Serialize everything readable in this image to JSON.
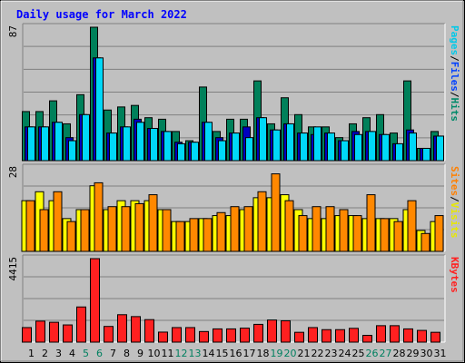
{
  "chart_data": [
    {
      "type": "bar",
      "title": "Daily usage for March 2022",
      "categories": [
        "1",
        "2",
        "3",
        "4",
        "5",
        "6",
        "7",
        "8",
        "9",
        "10",
        "11",
        "12",
        "13",
        "14",
        "15",
        "16",
        "17",
        "18",
        "19",
        "20",
        "21",
        "22",
        "23",
        "24",
        "25",
        "26",
        "27",
        "28",
        "29",
        "30",
        "31"
      ],
      "weekend_days": [
        "5",
        "6",
        "12",
        "13",
        "19",
        "20",
        "26",
        "27"
      ],
      "ymax_label": "87",
      "ylim": [
        0,
        87
      ],
      "ylabel_parts": [
        {
          "text": "Pages",
          "color": "#00c8e8"
        },
        {
          "text": "/",
          "color": "#000000"
        },
        {
          "text": "Files",
          "color": "#0040ff"
        },
        {
          "text": "/",
          "color": "#000000"
        },
        {
          "text": "Hits",
          "color": "#008a6a"
        }
      ],
      "series": [
        {
          "name": "Hits",
          "color": "#00805a",
          "values": [
            32,
            32,
            39,
            24,
            43,
            87,
            33,
            35,
            36,
            28,
            27,
            19,
            13,
            48,
            19,
            27,
            27,
            52,
            24,
            41,
            30,
            22,
            22,
            15,
            24,
            28,
            30,
            18,
            52,
            8,
            19
          ]
        },
        {
          "name": "Files",
          "color": "#0000c0",
          "values": [
            22,
            22,
            25,
            15,
            30,
            67,
            18,
            22,
            27,
            21,
            19,
            12,
            12,
            25,
            15,
            18,
            22,
            28,
            20,
            24,
            18,
            17,
            18,
            13,
            19,
            19,
            17,
            11,
            20,
            8,
            16
          ]
        },
        {
          "name": "Pages",
          "color": "#00d8f8",
          "values": [
            22,
            22,
            25,
            13,
            30,
            67,
            18,
            22,
            25,
            21,
            19,
            11,
            12,
            25,
            13,
            18,
            15,
            28,
            20,
            24,
            18,
            22,
            18,
            13,
            17,
            19,
            17,
            11,
            18,
            8,
            16
          ]
        }
      ]
    },
    {
      "type": "bar",
      "ymax_label": "28",
      "ylim": [
        0,
        28
      ],
      "ylabel_parts": [
        {
          "text": "Sites",
          "color": "#ff8000"
        },
        {
          "text": "/",
          "color": "#000000"
        },
        {
          "text": "Visits",
          "color": "#e8e800"
        }
      ],
      "series": [
        {
          "name": "Visits",
          "color": "#ffff00",
          "values": [
            17,
            20,
            17,
            11,
            14,
            22,
            14,
            17,
            17,
            17,
            14,
            10,
            10,
            11,
            12,
            12,
            14,
            18,
            18,
            19,
            14,
            11,
            11,
            12,
            12,
            11,
            11,
            11,
            14,
            7,
            10
          ]
        },
        {
          "name": "Sites",
          "color": "#ff8800",
          "values": [
            17,
            14,
            20,
            10,
            14,
            23,
            15,
            15,
            16,
            19,
            14,
            10,
            11,
            11,
            13,
            15,
            15,
            20,
            26,
            17,
            12,
            15,
            15,
            14,
            12,
            19,
            11,
            10,
            17,
            6,
            12
          ]
        }
      ]
    },
    {
      "type": "bar",
      "ymax_label": "4415",
      "ylim": [
        0,
        4415
      ],
      "ylabel_parts": [
        {
          "text": "KBytes",
          "color": "#ff2020"
        }
      ],
      "series": [
        {
          "name": "KBytes",
          "color": "#ff2020",
          "values": [
            770,
            1110,
            1050,
            910,
            1860,
            4415,
            830,
            1450,
            1350,
            1190,
            530,
            770,
            770,
            560,
            700,
            700,
            740,
            940,
            1170,
            1130,
            520,
            770,
            660,
            660,
            730,
            360,
            870,
            870,
            700,
            620,
            520
          ]
        }
      ]
    }
  ]
}
